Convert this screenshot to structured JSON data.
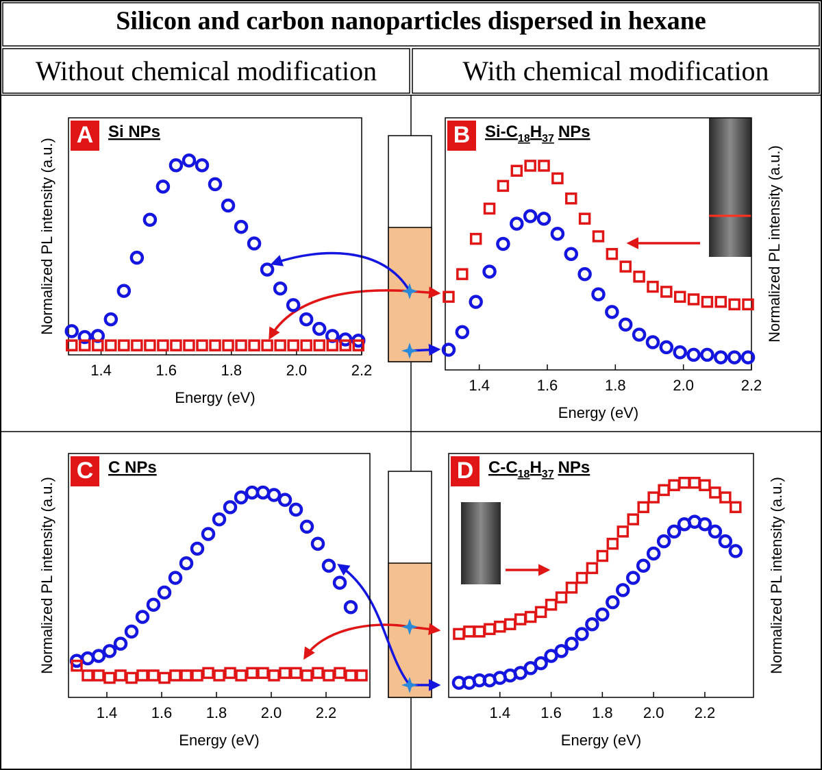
{
  "title": "Silicon and carbon nanoparticles dispersed in hexane",
  "column_headers": [
    "Without chemical modification",
    "With chemical modification"
  ],
  "chart_data": [
    {
      "type": "scatter",
      "panel": "A",
      "name_parts": [
        "Si NPs"
      ],
      "xlabel": "Energy (eV)",
      "ylabel": "Normalized PL intensity (a.u.)",
      "ylabel_side": "left",
      "xlim": [
        1.3,
        2.2
      ],
      "xticks": [
        1.4,
        1.6,
        1.8,
        {
          "value": 2,
          "label": "2.0"
        },
        2.2
      ],
      "ylim": [
        0,
        1
      ],
      "x": [
        1.31,
        1.35,
        1.39,
        1.43,
        1.47,
        1.51,
        1.55,
        1.59,
        1.63,
        1.67,
        1.71,
        1.75,
        1.79,
        1.83,
        1.87,
        1.91,
        1.95,
        1.99,
        2.03,
        2.07,
        2.11,
        2.15,
        2.19
      ],
      "series": [
        {
          "color": "#1515e0",
          "marker": "circle",
          "values": [
            0.1,
            0.075,
            0.08,
            0.15,
            0.27,
            0.41,
            0.57,
            0.71,
            0.8,
            0.82,
            0.8,
            0.72,
            0.63,
            0.54,
            0.47,
            0.36,
            0.28,
            0.21,
            0.15,
            0.11,
            0.08,
            0.065,
            0.06
          ]
        },
        {
          "color": "#e01515",
          "marker": "square",
          "values": [
            0.04,
            0.04,
            0.04,
            0.04,
            0.04,
            0.04,
            0.04,
            0.04,
            0.04,
            0.04,
            0.04,
            0.04,
            0.04,
            0.04,
            0.04,
            0.04,
            0.04,
            0.04,
            0.04,
            0.04,
            0.04,
            0.04,
            0.04
          ]
        }
      ]
    },
    {
      "type": "scatter",
      "panel": "B",
      "name_parts": [
        "Si-C",
        "18",
        "H",
        "37",
        "NPs"
      ],
      "xlabel": "Energy (eV)",
      "ylabel": "Normalized PL intensity (a.u.)",
      "ylabel_side": "right",
      "xlim": [
        1.3,
        2.2
      ],
      "xticks": [
        1.4,
        1.6,
        1.8,
        {
          "value": 2,
          "label": "2.0"
        },
        2.2
      ],
      "ylim": [
        0,
        1
      ],
      "x": [
        1.31,
        1.35,
        1.39,
        1.43,
        1.47,
        1.51,
        1.55,
        1.59,
        1.63,
        1.67,
        1.71,
        1.75,
        1.79,
        1.83,
        1.87,
        1.91,
        1.95,
        1.99,
        2.03,
        2.07,
        2.11,
        2.15,
        2.19
      ],
      "series": [
        {
          "color": "#e01515",
          "marker": "square",
          "values": [
            0.29,
            0.38,
            0.52,
            0.64,
            0.73,
            0.79,
            0.81,
            0.81,
            0.76,
            0.68,
            0.6,
            0.53,
            0.46,
            0.41,
            0.37,
            0.33,
            0.31,
            0.29,
            0.28,
            0.27,
            0.27,
            0.26,
            0.26
          ]
        },
        {
          "color": "#1515e0",
          "marker": "circle",
          "values": [
            0.08,
            0.15,
            0.27,
            0.39,
            0.5,
            0.58,
            0.61,
            0.6,
            0.54,
            0.46,
            0.38,
            0.3,
            0.23,
            0.18,
            0.14,
            0.11,
            0.09,
            0.07,
            0.06,
            0.06,
            0.05,
            0.05,
            0.05
          ]
        }
      ]
    },
    {
      "type": "scatter",
      "panel": "C",
      "name_parts": [
        "C NPs"
      ],
      "xlabel": "Energy (eV)",
      "ylabel": "Normalized PL intensity (a.u.)",
      "ylabel_side": "left",
      "xlim": [
        1.26,
        2.36
      ],
      "xticks": [
        1.4,
        1.6,
        1.8,
        {
          "value": 2,
          "label": "2.0"
        },
        2.2
      ],
      "ylim": [
        0,
        1
      ],
      "series": [
        {
          "color": "#1515e0",
          "marker": "circle",
          "x": [
            1.29,
            1.33,
            1.37,
            1.41,
            1.45,
            1.49,
            1.53,
            1.57,
            1.61,
            1.65,
            1.69,
            1.73,
            1.77,
            1.81,
            1.85,
            1.89,
            1.93,
            1.97,
            2.01,
            2.05,
            2.09,
            2.13,
            2.17,
            2.21,
            2.25,
            2.29
          ],
          "values": [
            0.15,
            0.16,
            0.17,
            0.19,
            0.22,
            0.27,
            0.33,
            0.38,
            0.43,
            0.49,
            0.55,
            0.61,
            0.67,
            0.73,
            0.78,
            0.82,
            0.84,
            0.84,
            0.83,
            0.81,
            0.77,
            0.7,
            0.63,
            0.54,
            0.47,
            0.37
          ]
        },
        {
          "color": "#e01515",
          "marker": "square",
          "x": [
            1.29,
            1.33,
            1.37,
            1.41,
            1.45,
            1.49,
            1.53,
            1.57,
            1.61,
            1.65,
            1.69,
            1.73,
            1.77,
            1.81,
            1.85,
            1.89,
            1.93,
            1.97,
            2.01,
            2.05,
            2.09,
            2.13,
            2.17,
            2.21,
            2.25,
            2.29,
            2.33
          ],
          "values": [
            0.13,
            0.09,
            0.09,
            0.08,
            0.09,
            0.08,
            0.09,
            0.09,
            0.08,
            0.09,
            0.09,
            0.09,
            0.1,
            0.09,
            0.1,
            0.09,
            0.1,
            0.1,
            0.09,
            0.1,
            0.1,
            0.09,
            0.1,
            0.09,
            0.1,
            0.09,
            0.09
          ]
        }
      ]
    },
    {
      "type": "scatter",
      "panel": "D",
      "name_parts": [
        "C-C",
        "18",
        "H",
        "37",
        "NPs"
      ],
      "xlabel": "Energy (eV)",
      "ylabel": "Normalized PL intensity (a.u.)",
      "ylabel_side": "right",
      "xlim": [
        1.2,
        2.39
      ],
      "xticks": [
        1.4,
        1.6,
        1.8,
        {
          "value": 2,
          "label": "2.0"
        },
        2.2
      ],
      "ylim": [
        0,
        1
      ],
      "x": [
        1.24,
        1.28,
        1.32,
        1.36,
        1.4,
        1.44,
        1.48,
        1.52,
        1.56,
        1.6,
        1.64,
        1.68,
        1.72,
        1.76,
        1.8,
        1.84,
        1.88,
        1.92,
        1.96,
        2.0,
        2.04,
        2.08,
        2.12,
        2.16,
        2.2,
        2.24,
        2.28,
        2.32
      ],
      "series": [
        {
          "color": "#e01515",
          "marker": "square",
          "values": [
            0.26,
            0.27,
            0.27,
            0.28,
            0.29,
            0.3,
            0.32,
            0.33,
            0.35,
            0.38,
            0.41,
            0.45,
            0.49,
            0.53,
            0.58,
            0.63,
            0.68,
            0.73,
            0.78,
            0.82,
            0.85,
            0.87,
            0.88,
            0.88,
            0.87,
            0.84,
            0.82,
            0.78
          ]
        },
        {
          "color": "#1515e0",
          "marker": "circle",
          "values": [
            0.06,
            0.06,
            0.07,
            0.07,
            0.08,
            0.09,
            0.1,
            0.12,
            0.14,
            0.17,
            0.19,
            0.22,
            0.26,
            0.3,
            0.34,
            0.39,
            0.44,
            0.49,
            0.54,
            0.59,
            0.64,
            0.68,
            0.71,
            0.72,
            0.71,
            0.68,
            0.64,
            0.6
          ]
        }
      ]
    }
  ]
}
